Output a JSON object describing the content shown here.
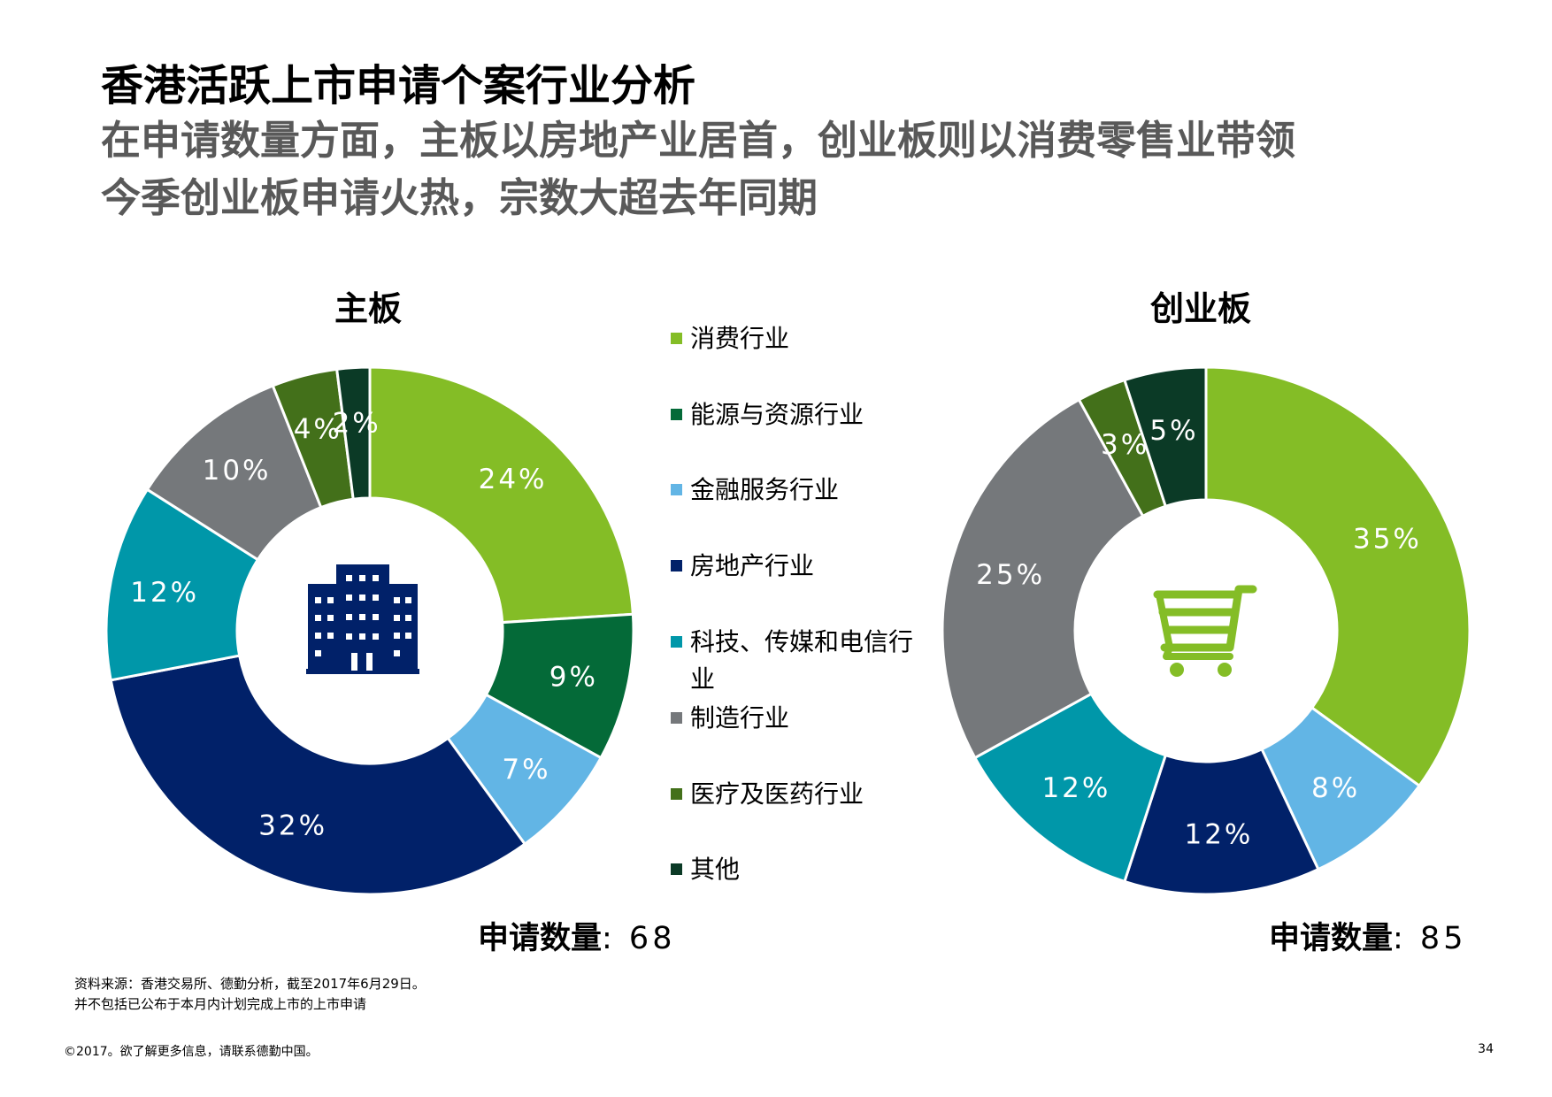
{
  "title": "香港活跃上市申请个案行业分析",
  "subtitle_lines": [
    "在申请数量方面，主板以房地产业居首，创业板则以消费零售业带领",
    "今季创业板申请火热，宗数大超去年同期"
  ],
  "legend": [
    {
      "label": "消费行业",
      "color": "#84BD26"
    },
    {
      "label": "能源与资源行业",
      "color": "#046A38"
    },
    {
      "label": "金融服务行业",
      "color": "#62B5E5"
    },
    {
      "label": "房地产行业",
      "color": "#012169"
    },
    {
      "label": "科技、传媒和电信行业",
      "color": "#0097A9"
    },
    {
      "label": "制造行业",
      "color": "#75787B"
    },
    {
      "label": "医疗及医药行业",
      "color": "#43701A"
    },
    {
      "label": "其他",
      "color": "#0B3A26"
    }
  ],
  "chart_data": [
    {
      "type": "pie",
      "title": "主板",
      "categories": [
        "消费行业",
        "能源与资源行业",
        "金融服务行业",
        "房地产行业",
        "科技、传媒和电信行业",
        "制造行业",
        "医疗及医药行业",
        "其他"
      ],
      "values": [
        24,
        9,
        7,
        32,
        12,
        10,
        4,
        2
      ],
      "value_labels": [
        "24%",
        "9%",
        "7%",
        "32%",
        "12%",
        "10%",
        "4%",
        "2%"
      ],
      "center_icon": "building-icon",
      "count_label": "申请数量",
      "count_value": ": 68"
    },
    {
      "type": "pie",
      "title": "创业板",
      "categories": [
        "消费行业",
        "金融服务行业",
        "房地产行业",
        "科技、传媒和电信行业",
        "制造行业",
        "医疗及医药行业",
        "其他"
      ],
      "values": [
        35,
        8,
        12,
        12,
        25,
        3,
        5
      ],
      "value_labels": [
        "35%",
        "8%",
        "12%",
        "12%",
        "25%",
        "3%",
        "5%"
      ],
      "center_icon": "shopping-cart-icon",
      "count_label": "申请数量",
      "count_value": ": 85"
    }
  ],
  "colors": {
    "消费行业": "#84BD26",
    "能源与资源行业": "#046A38",
    "金融服务行业": "#62B5E5",
    "房地产行业": "#012169",
    "科技、传媒和电信行业": "#0097A9",
    "制造行业": "#75787B",
    "医疗及医药行业": "#43701A",
    "其他": "#0B3A26"
  },
  "footnotes": [
    "资料来源：香港交易所、德勤分析，截至2017年6月29日。",
    "并不包括已公布于本月内计划完成上市的上市申请"
  ],
  "copyright": "©2017。欲了解更多信息，请联系德勤中国。",
  "page_number": "34"
}
